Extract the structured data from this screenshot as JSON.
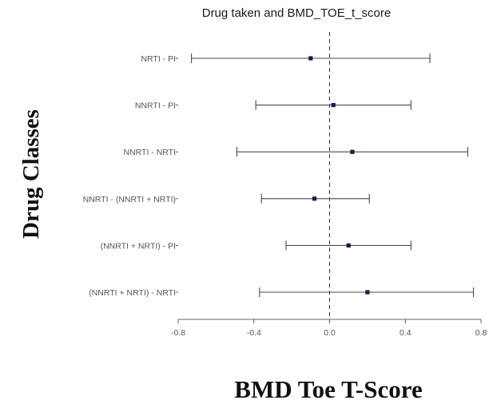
{
  "chart_data": {
    "type": "forest",
    "title": "Drug taken and BMD_TOE_t_score",
    "xlabel": "BMD Toe T-Score",
    "ylabel": "Drug Classes",
    "xlim": [
      -0.8,
      0.8
    ],
    "xticks": [
      -0.8,
      -0.4,
      0.0,
      0.4,
      0.8
    ],
    "xtick_labels": [
      "-0.8",
      "-0.4",
      "0.0",
      "0.4",
      "0.8"
    ],
    "reference_line": 0,
    "grid": false,
    "categories": [
      "NRTI - PI",
      "NNRTI - PI",
      "NNRTI - NRTI",
      "NNRTI - (NNRTI + NRTI)",
      "(NNRTI + NRTI) - PI",
      "(NNRTI + NRTI) - NRTI"
    ],
    "estimates": [
      -0.1,
      0.02,
      0.12,
      -0.08,
      0.1,
      0.2
    ],
    "lower": [
      -0.73,
      -0.39,
      -0.49,
      -0.36,
      -0.23,
      -0.37
    ],
    "upper": [
      0.53,
      0.43,
      0.73,
      0.21,
      0.43,
      0.76
    ],
    "colors": {
      "point": "#1a1a4e",
      "line": "#4a4a4a"
    }
  }
}
